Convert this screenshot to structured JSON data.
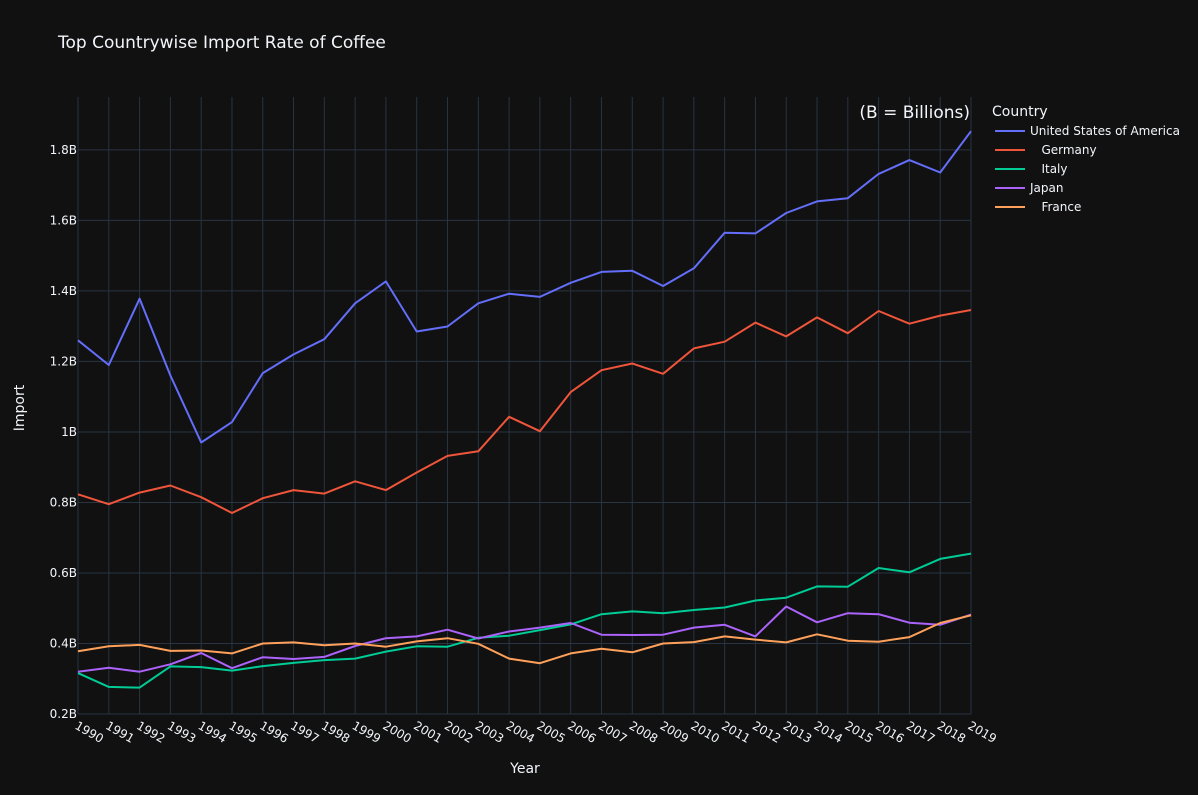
{
  "chart_data": {
    "type": "line",
    "title": "Top Countrywise Import Rate of Coffee",
    "annotation": "(B = Billions)",
    "xlabel": "Year",
    "ylabel": "Import",
    "legend_title": "Country",
    "legend_position": "top-right",
    "grid": true,
    "ylim": [
      0.2,
      1.95
    ],
    "yticks": [
      0.2,
      0.4,
      0.6,
      0.8,
      1.0,
      1.2,
      1.4,
      1.6,
      1.8
    ],
    "ytick_labels": [
      "0.2B",
      "0.4B",
      "0.6B",
      "0.8B",
      "1B",
      "1.2B",
      "1.4B",
      "1.6B",
      "1.8B"
    ],
    "x": [
      "1990",
      "1991",
      "1992",
      "1993",
      "1994",
      "1995",
      "1996",
      "1997",
      "1998",
      "1999",
      "2000",
      "2001",
      "2002",
      "2003",
      "2004",
      "2005",
      "2006",
      "2007",
      "2008",
      "2009",
      "2010",
      "2011",
      "2012",
      "2013",
      "2014",
      "2015",
      "2016",
      "2017",
      "2018",
      "2019"
    ],
    "series": [
      {
        "name": "United States of America",
        "color": "#636efa",
        "values": [
          1.26,
          1.19,
          1.378,
          1.16,
          0.97,
          1.028,
          1.167,
          1.22,
          1.263,
          1.365,
          1.427,
          1.285,
          1.299,
          1.365,
          1.392,
          1.383,
          1.423,
          1.454,
          1.457,
          1.414,
          1.464,
          1.565,
          1.563,
          1.621,
          1.654,
          1.663,
          1.732,
          1.771,
          1.736,
          1.853
        ]
      },
      {
        "name": "   Germany",
        "color": "#ef553b",
        "values": [
          0.823,
          0.795,
          0.828,
          0.848,
          0.815,
          0.77,
          0.812,
          0.835,
          0.825,
          0.86,
          0.835,
          0.885,
          0.932,
          0.945,
          1.043,
          1.002,
          1.113,
          1.175,
          1.194,
          1.165,
          1.237,
          1.256,
          1.31,
          1.271,
          1.325,
          1.28,
          1.343,
          1.307,
          1.33,
          1.346
        ]
      },
      {
        "name": "   Italy",
        "color": "#00cc96",
        "values": [
          0.316,
          0.277,
          0.275,
          0.335,
          0.333,
          0.323,
          0.336,
          0.345,
          0.353,
          0.357,
          0.377,
          0.392,
          0.391,
          0.416,
          0.422,
          0.438,
          0.454,
          0.483,
          0.491,
          0.486,
          0.495,
          0.502,
          0.522,
          0.53,
          0.562,
          0.561,
          0.614,
          0.602,
          0.64,
          0.655
        ]
      },
      {
        "name": "Japan",
        "color": "#ab63fa",
        "values": [
          0.32,
          0.331,
          0.32,
          0.341,
          0.373,
          0.33,
          0.361,
          0.356,
          0.362,
          0.393,
          0.415,
          0.42,
          0.439,
          0.414,
          0.434,
          0.445,
          0.458,
          0.425,
          0.424,
          0.425,
          0.445,
          0.453,
          0.42,
          0.505,
          0.46,
          0.486,
          0.483,
          0.459,
          0.453,
          0.482
        ]
      },
      {
        "name": "   France",
        "color": "#ffa15a",
        "values": [
          0.378,
          0.392,
          0.396,
          0.379,
          0.38,
          0.372,
          0.4,
          0.403,
          0.395,
          0.4,
          0.391,
          0.406,
          0.415,
          0.399,
          0.357,
          0.344,
          0.372,
          0.385,
          0.375,
          0.4,
          0.404,
          0.42,
          0.411,
          0.403,
          0.426,
          0.408,
          0.405,
          0.418,
          0.458,
          0.48
        ]
      }
    ]
  },
  "colors": {
    "background": "#111111",
    "grid": "#283442",
    "text": "#f2f5fa"
  }
}
